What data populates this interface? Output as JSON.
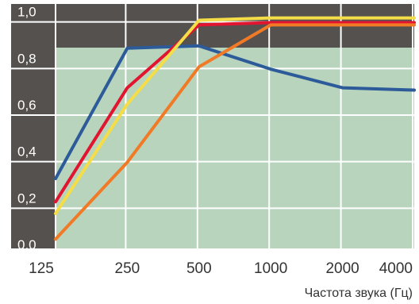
{
  "chart_data": {
    "type": "line",
    "title": "",
    "xlabel": "Частота звука (Гц)",
    "ylabel": "",
    "categories": [
      "125",
      "250",
      "500",
      "1000",
      "2000",
      "4000"
    ],
    "y_tick_labels": [
      "0,0",
      "0,2",
      "0,4",
      "0,6",
      "0,8",
      "1,0"
    ],
    "ylim": [
      0,
      1.05
    ],
    "grid": true,
    "legend": "none",
    "colors": {
      "plot_background": "#b8d4bd",
      "top_band": "#55514f",
      "left_band": "#55514f",
      "grid": "#ffffff"
    },
    "series": [
      {
        "color": "#2d5b99",
        "values": [
          0.3,
          0.86,
          0.87,
          0.77,
          0.69,
          0.68
        ]
      },
      {
        "color": "#e21530",
        "values": [
          0.2,
          0.69,
          0.96,
          0.97,
          0.97,
          0.97
        ]
      },
      {
        "color": "#f5dd47",
        "values": [
          0.15,
          0.62,
          0.98,
          0.99,
          0.99,
          0.99
        ]
      },
      {
        "color": "#f07a26",
        "values": [
          0.04,
          0.37,
          0.78,
          0.96,
          0.96,
          0.96
        ]
      }
    ]
  }
}
